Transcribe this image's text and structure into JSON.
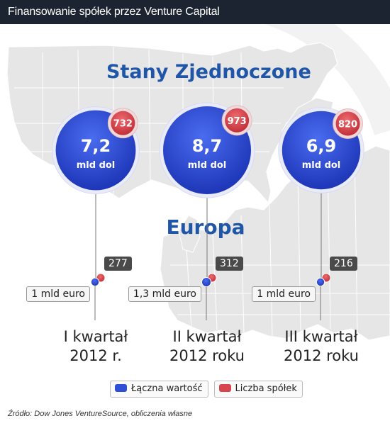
{
  "header": {
    "title": "Finansowanie spółek przez Venture Capital"
  },
  "colors": {
    "header_bg": "#1b2430",
    "title_blue": "#1f56a8",
    "bubble_blue": "#2f4fd6",
    "bubble_red": "#d8454c",
    "map_land": "#e6e6e6",
    "map_border": "#ffffff"
  },
  "chart_data": {
    "type": "bubble",
    "title": "",
    "categories": [
      "I kwartał 2012 r.",
      "II kwartał 2012 roku",
      "III kwartał 2012 roku"
    ],
    "us": {
      "title": "Stany Zjednoczone",
      "series": [
        {
          "name": "Łączna wartość",
          "values": [
            7.2,
            8.7,
            6.9
          ],
          "labels": [
            "7,2",
            "8,7",
            "6,9"
          ],
          "unit": "mld dol"
        },
        {
          "name": "Liczba spółek",
          "values": [
            732,
            973,
            820
          ]
        }
      ]
    },
    "europe": {
      "title": "Europa",
      "series": [
        {
          "name": "Łączna wartość",
          "values": [
            1,
            1.3,
            1
          ],
          "labels": [
            "1 mld euro",
            "1,3 mld euro",
            "1 mld euro"
          ]
        },
        {
          "name": "Liczba spółek",
          "values": [
            277,
            312,
            216
          ]
        }
      ]
    },
    "quarters": [
      {
        "line1": "I kwartał",
        "line2": "2012 r."
      },
      {
        "line1": "II kwartał",
        "line2": "2012 roku"
      },
      {
        "line1": "III kwartał",
        "line2": "2012 roku"
      }
    ],
    "legend": [
      {
        "name": "Łączna wartość",
        "color": "#2f4fd6"
      },
      {
        "name": "Liczba spółek",
        "color": "#d8454c"
      }
    ]
  },
  "source": "Źródło: Dow Jones VentureSource, obliczenia własne"
}
